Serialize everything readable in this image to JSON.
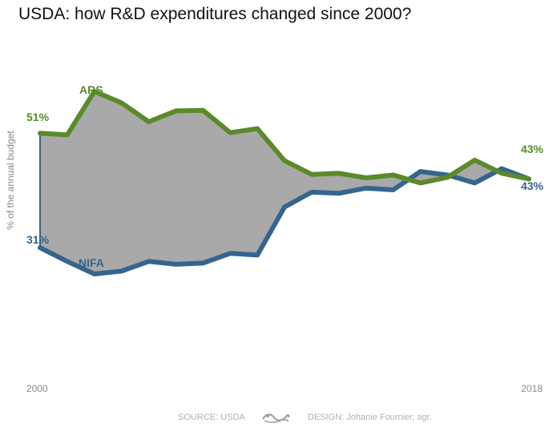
{
  "title": "USDA: how R&D expenditures changed since 2000?",
  "chart_data": {
    "type": "area",
    "title": "USDA: how R&D expenditures changed since 2000?",
    "ylabel": "% of the annual budget",
    "x": [
      2000,
      2001,
      2002,
      2003,
      2004,
      2005,
      2006,
      2007,
      2008,
      2009,
      2010,
      2011,
      2012,
      2013,
      2014,
      2015,
      2016,
      2017,
      2018
    ],
    "x_tick_labels": [
      "2000",
      "2018"
    ],
    "ylim": [
      25,
      60
    ],
    "grid": false,
    "legend": "direct labels",
    "series": [
      {
        "name": "ARS",
        "color": "#5a8a2b",
        "values": [
          51,
          50.7,
          58.3,
          56.3,
          53,
          54.9,
          55,
          51.1,
          51.8,
          46.2,
          43.8,
          44,
          43.2,
          43.7,
          42.3,
          43.3,
          46.3,
          44,
          43
        ],
        "start_label": "51%",
        "end_label": "43%"
      },
      {
        "name": "NIFA",
        "color": "#35658f",
        "values": [
          31,
          28.6,
          26.4,
          26.9,
          28.6,
          28.1,
          28.3,
          30,
          29.7,
          38.1,
          40.7,
          40.5,
          41.4,
          41.1,
          44.3,
          43.7,
          42.3,
          44.8,
          43
        ],
        "start_label": "31%",
        "end_label": "43%"
      }
    ],
    "fill_between_color": "#a9a9a9"
  },
  "footer": {
    "source": "SOURCE: USDA",
    "design": "DESIGN: Johanie Fournier, agr."
  }
}
